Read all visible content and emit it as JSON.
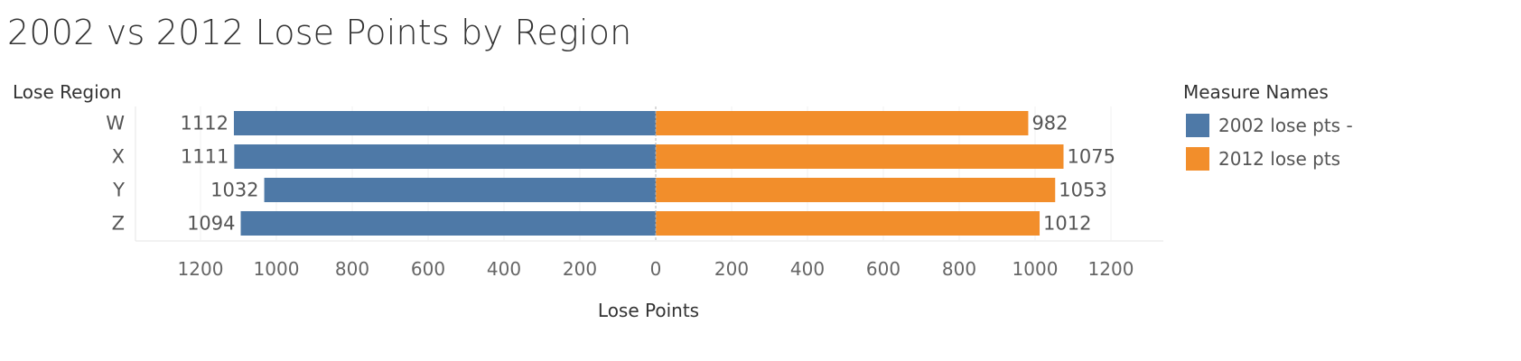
{
  "chart_data": {
    "type": "bar",
    "orientation": "horizontal-diverging",
    "title": "2002 vs 2012 Lose Points by Region",
    "row_header": "Lose Region",
    "xlabel": "Lose Points",
    "categories": [
      "W",
      "X",
      "Y",
      "Z"
    ],
    "series": [
      {
        "name": "2002 lose pts -",
        "color": "#4e79a7",
        "side": "left",
        "values": [
          1112,
          1111,
          1032,
          1094
        ]
      },
      {
        "name": "2012 lose pts",
        "color": "#f28e2b",
        "side": "right",
        "values": [
          982,
          1075,
          1053,
          1012
        ]
      }
    ],
    "xlim": [
      -1400,
      1340
    ],
    "xticks": [
      -1200,
      -1000,
      -800,
      -600,
      -400,
      -200,
      0,
      200,
      400,
      600,
      800,
      1000,
      1200
    ],
    "xtick_labels": [
      "1200",
      "1000",
      "800",
      "600",
      "400",
      "200",
      "0",
      "200",
      "400",
      "600",
      "800",
      "1000",
      "1200"
    ],
    "grid": true,
    "data_labels": true,
    "legend": {
      "title": "Measure Names",
      "placement": "right"
    }
  }
}
